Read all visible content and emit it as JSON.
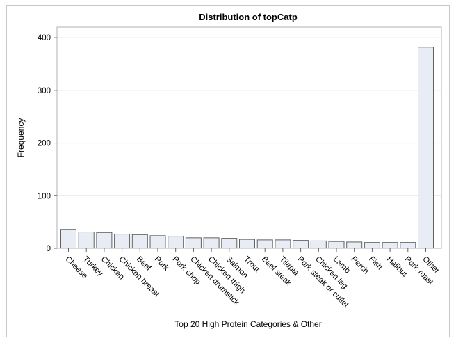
{
  "chart_data": {
    "type": "bar",
    "title": "Distribution of topCatp",
    "xlabel": "Top 20 High Protein Categories & Other",
    "ylabel": "Frequency",
    "ylim": [
      0,
      420
    ],
    "yticks": [
      0,
      100,
      200,
      300,
      400
    ],
    "grid": true,
    "categories": [
      "Cheese",
      "Turkey",
      "Chicken",
      "Chicken breast",
      "Beef",
      "Pork",
      "Pork chop",
      "Chicken drumstick",
      "Chicken thigh",
      "Salmon",
      "Trout",
      "Beef steak",
      "Tilapia",
      "Pork steak or cutlet",
      "Chicken leg",
      "Lamb",
      "Perch",
      "Fish",
      "Halibut",
      "Pork roast",
      "Other"
    ],
    "values": [
      36,
      31,
      30,
      27,
      26,
      24,
      23,
      20,
      20,
      19,
      17,
      16,
      16,
      15,
      14,
      13,
      12,
      11,
      11,
      11,
      382
    ],
    "colors": {
      "bar_fill": "#e8ecf5",
      "bar_stroke": "#606060"
    }
  }
}
